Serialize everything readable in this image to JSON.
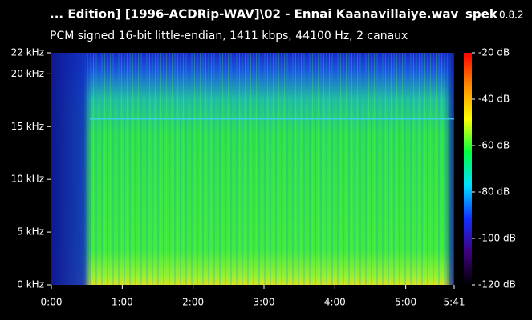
{
  "header": {
    "title": "... Edition] [1996-ACDRip-WAV]\\02 - Ennai Kaanavillaiye.wav",
    "app": "spek",
    "version": "0.8.2",
    "subtitle": "PCM signed 16-bit little-endian, 1411 kbps, 44100 Hz, 2 canaux"
  },
  "chart_data": {
    "type": "spectrogram",
    "xlim": [
      0,
      341
    ],
    "xticks": [
      {
        "value": 0,
        "label": "0:00"
      },
      {
        "value": 60,
        "label": "1:00"
      },
      {
        "value": 120,
        "label": "2:00"
      },
      {
        "value": 180,
        "label": "3:00"
      },
      {
        "value": 240,
        "label": "4:00"
      },
      {
        "value": 300,
        "label": "5:00"
      },
      {
        "value": 341,
        "label": "5:41"
      }
    ],
    "ylim": [
      0,
      22
    ],
    "yticks": [
      {
        "value": 0,
        "label": "0 kHz"
      },
      {
        "value": 5,
        "label": "5 kHz"
      },
      {
        "value": 10,
        "label": "10 kHz"
      },
      {
        "value": 15,
        "label": "15 kHz"
      },
      {
        "value": 20,
        "label": "20 kHz"
      },
      {
        "value": 22,
        "label": "22 kHz"
      }
    ],
    "colorbar": {
      "lim": [
        -120,
        -20
      ],
      "ticks": [
        {
          "value": -20,
          "label": "-20 dB"
        },
        {
          "value": -40,
          "label": "-40 dB"
        },
        {
          "value": -60,
          "label": "-60 dB"
        },
        {
          "value": -80,
          "label": "-80 dB"
        },
        {
          "value": -100,
          "label": "-100 dB"
        },
        {
          "value": -120,
          "label": "-120 dB"
        }
      ],
      "colors": [
        "#ff0000",
        "#ff8c00",
        "#ffff00",
        "#00ff40",
        "#00e0ff",
        "#1030ff",
        "#400080",
        "#000000"
      ]
    }
  }
}
